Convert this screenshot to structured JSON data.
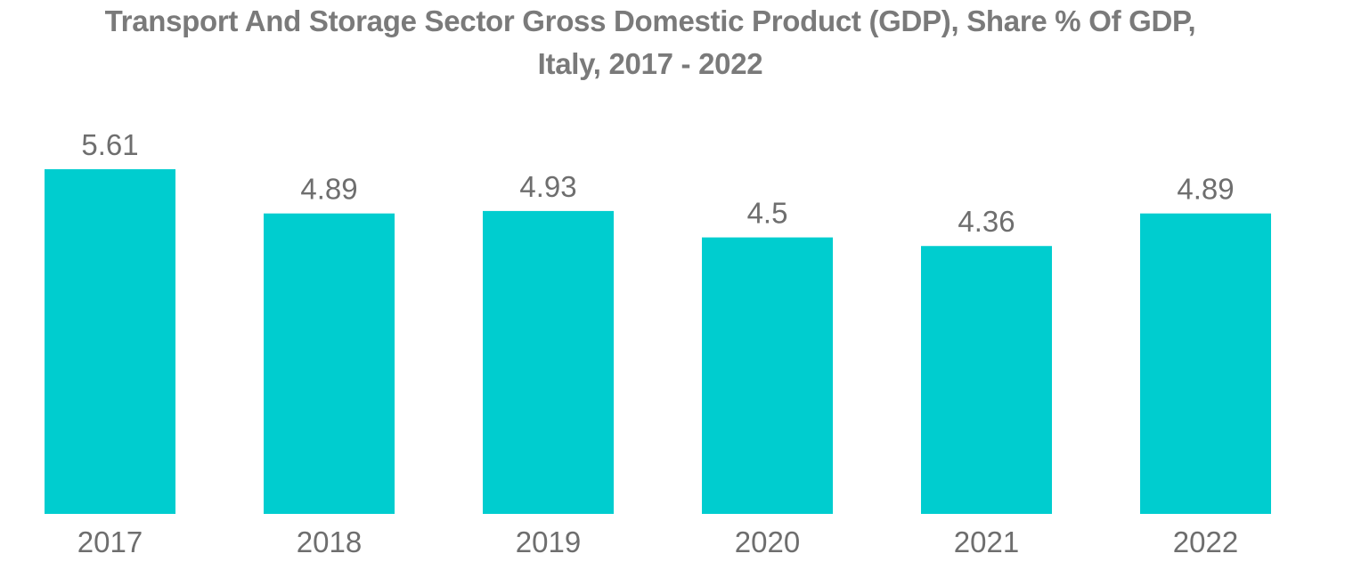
{
  "chart_data": {
    "type": "bar",
    "title": "Transport And Storage Sector Gross Domestic Product (GDP), Share % Of GDP, Italy, 2017 - 2022",
    "title_lines": [
      "Transport And Storage Sector Gross Domestic Product (GDP), Share % Of GDP,",
      "Italy, 2017 - 2022"
    ],
    "categories": [
      "2017",
      "2018",
      "2019",
      "2020",
      "2021",
      "2022"
    ],
    "values": [
      5.61,
      4.89,
      4.93,
      4.5,
      4.36,
      4.89
    ],
    "value_labels": [
      "5.61",
      "4.89",
      "4.93",
      "4.5",
      "4.36",
      "4.89"
    ],
    "xlabel": "",
    "ylabel": "",
    "ylim": [
      0,
      5.61
    ],
    "grid": false,
    "legend": "none",
    "bar_color": "#00cdcf",
    "text_color": "#6e6e6e"
  }
}
